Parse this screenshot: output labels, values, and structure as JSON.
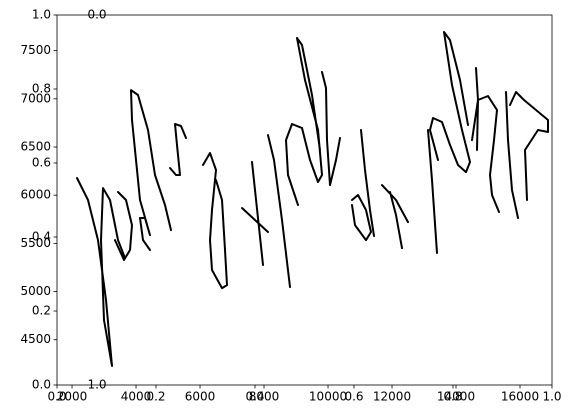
{
  "chart_data": {
    "type": "line",
    "x": [
      2155,
      2499,
      2811,
      3061,
      3249,
      2999,
      2905,
      2968,
      3186,
      3436,
      3655,
      null,
      3436,
      3686,
      3874,
      3811,
      3624,
      3343,
      null,
      4436,
      4218,
      4124,
      4280,
      4436,
      4124,
      3874,
      3843,
      4061,
      4374,
      4593,
      4905,
      5093,
      null,
      5061,
      5249,
      5374,
      5280,
      5218,
      5405,
      5561,
      null,
      6093,
      6311,
      6499,
      6374,
      6311,
      6374,
      6686,
      6843,
      6780,
      6686,
      6499,
      null,
      7311,
      8124,
      null,
      7624,
      7968,
      null,
      8124,
      8311,
      8561,
      8811,
      null,
      9061,
      8749,
      8686,
      8874,
      9186,
      9436,
      9686,
      9811,
      9686,
      9280,
      9030,
      9186,
      9499,
      9749,
      null,
      9811,
      9936,
      9968,
      10061,
      10249,
      10374,
      null,
      10749,
      10936,
      11186,
      11343,
      11186,
      10843,
      10749,
      null,
      11030,
      11155,
      11311,
      11436,
      null,
      11686,
      12124,
      12499,
      null,
      11936,
      12124,
      12311,
      null,
      13124,
      13249,
      13405,
      null,
      13436,
      13186,
      13280,
      13561,
      13811,
      14061,
      14311,
      14436,
      14186,
      13874,
      13624,
      13811,
      14124,
      14374,
      null,
      14624,
      14686,
      14655,
      null,
      14499,
      14686,
      15000,
      15280,
      15186,
      15061,
      15124,
      15343,
      null,
      15561,
      15624,
      15749,
      15936,
      null,
      15686,
      15874,
      16124,
      16874,
      16874,
      16561,
      16155,
      16218
    ],
    "series": [
      {
        "color": "#000000",
        "values": [
          6178,
          5950,
          5534,
          4912,
          4227,
          4704,
          5534,
          6074,
          5950,
          5534,
          5348,
          null,
          6033,
          5950,
          5690,
          5431,
          5327,
          5534,
          null,
          5431,
          5534,
          5763,
          5763,
          5586,
          5950,
          6780,
          7091,
          7040,
          6676,
          6209,
          5898,
          5638,
          null,
          6282,
          6209,
          6209,
          6521,
          6739,
          6718,
          6593,
          null,
          6313,
          6438,
          6261,
          5846,
          5534,
          5223,
          5036,
          5067,
          5431,
          5950,
          6157,
          null,
          5867,
          5618,
          null,
          6344,
          5275,
          null,
          6624,
          6365,
          5742,
          5047,
          null,
          5898,
          6209,
          6572,
          6739,
          6697,
          6365,
          6137,
          6209,
          6676,
          7195,
          7631,
          7559,
          7040,
          6469,
          null,
          7278,
          7112,
          6572,
          6105,
          6365,
          6593,
          null,
          5950,
          6002,
          5846,
          5618,
          5534,
          5690,
          5898,
          null,
          6676,
          6261,
          5846,
          5576,
          null,
          6105,
          5950,
          5721,
          null,
          6033,
          5794,
          5451,
          null,
          6676,
          6157,
          5400,
          null,
          6365,
          6676,
          6801,
          6759,
          6521,
          6313,
          6240,
          6344,
          6676,
          7143,
          7694,
          7610,
          7195,
          6728,
          null,
          7320,
          6988,
          6469,
          null,
          6572,
          6988,
          7029,
          6884,
          6572,
          6209,
          6002,
          5825,
          null,
          7071,
          6572,
          6053,
          5763,
          null,
          6936,
          7071,
          6988,
          6780,
          6656,
          6676,
          6469,
          5950
        ]
      }
    ],
    "xlim": [
      1530,
      17000
    ],
    "xticks": [
      2000,
      4000,
      6000,
      8000,
      10000,
      12000,
      14000,
      16000
    ],
    "ylim": [
      4030,
      7870
    ],
    "yticks": [
      4500,
      5000,
      5500,
      6000,
      6500,
      7000,
      7500
    ],
    "x2lim": [
      0,
      1
    ],
    "x2ticks": [
      {
        "value": 0,
        "label": "0.0"
      },
      {
        "value": 0.2,
        "label": "0.2"
      },
      {
        "value": 0.4,
        "label": "0.4"
      },
      {
        "value": 0.6,
        "label": "0.6"
      },
      {
        "value": 0.8,
        "label": "0.8"
      },
      {
        "value": 1,
        "label": "1.0"
      }
    ],
    "y2lim": [
      0,
      1
    ],
    "y2ticks": [
      {
        "value": 0,
        "label": "0.0"
      },
      {
        "value": 0.2,
        "label": "0.2"
      },
      {
        "value": 0.4,
        "label": "0.4"
      },
      {
        "value": 0.6,
        "label": "0.6"
      },
      {
        "value": 0.8,
        "label": "0.8"
      },
      {
        "value": 1,
        "label": "1.0"
      }
    ],
    "y3lim": [
      1,
      0
    ],
    "y3ticks": [
      {
        "value": 0,
        "label": "0.0"
      },
      {
        "value": 1,
        "label": "1.0"
      }
    ]
  }
}
